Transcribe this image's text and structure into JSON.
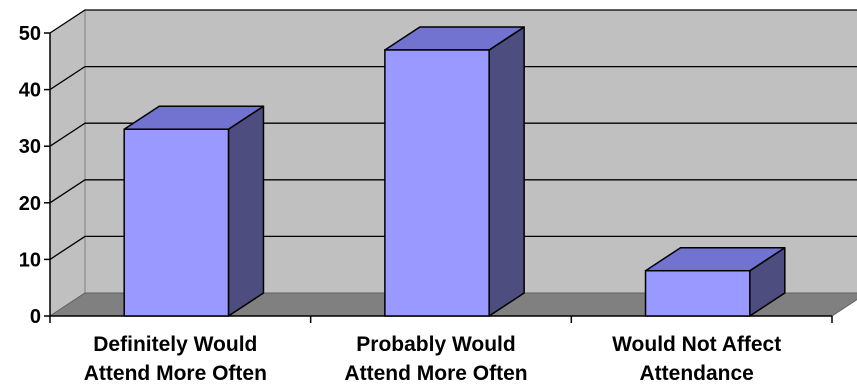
{
  "chart_data": {
    "type": "bar",
    "style": "3d-column",
    "title": "",
    "xlabel": "",
    "ylabel": "",
    "categories": [
      [
        "Definitely Would",
        "Attend More Often"
      ],
      [
        "Probably Would",
        "Attend More Often"
      ],
      [
        "Would Not Affect",
        "Attendance"
      ]
    ],
    "values": [
      33,
      47,
      8
    ],
    "ylim": [
      0,
      50
    ],
    "yticks": [
      0,
      10,
      20,
      30,
      40,
      50
    ],
    "grid": true,
    "legend": "none",
    "colors": {
      "bar_front": "#9999ff",
      "bar_top": "#7272d0",
      "bar_side": "#4d4d80",
      "wall": "#c0c0c0",
      "floor": "#808080"
    }
  }
}
